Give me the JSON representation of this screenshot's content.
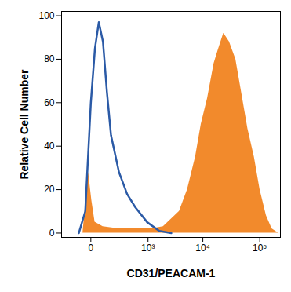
{
  "chart_data": {
    "type": "histogram",
    "xlabel": "CD31/PEACAM-1",
    "ylabel": "Relative Cell Number",
    "log": "x",
    "grid": false,
    "xlim": [
      -250,
      230000
    ],
    "ylim": [
      -2,
      102
    ],
    "xticks": [
      0,
      {
        "value": 1000,
        "label": "10³"
      },
      {
        "value": 10000,
        "label": "10⁴"
      },
      {
        "value": 100000,
        "label": "10⁵"
      }
    ],
    "yticks": [
      0,
      20,
      40,
      60,
      80,
      100
    ],
    "series": [
      {
        "type": "area",
        "color": "#f28a2c",
        "x": [
          -42,
          -11,
          4,
          20,
          70,
          234,
          1153,
          1945,
          3820,
          5330,
          7410,
          9330,
          12100,
          15740,
          18540,
          23300,
          29300,
          37950,
          47700,
          61700,
          80100,
          100700,
          130300,
          163700,
          212300
        ],
        "values": [
          0,
          28,
          15,
          5,
          3,
          2,
          2,
          3,
          10,
          20,
          35,
          50,
          62,
          78,
          84,
          92,
          88,
          80,
          65,
          48,
          35,
          20,
          8,
          2,
          0
        ]
      },
      {
        "type": "line",
        "color": "#2b5aa6",
        "x": [
          -69,
          -28,
          0,
          20,
          42,
          70,
          101,
          139,
          234,
          367,
          550,
          963,
          1635,
          2730
        ],
        "values": [
          0,
          10,
          60,
          85,
          97,
          88,
          65,
          45,
          28,
          18,
          12,
          5,
          1,
          0
        ]
      }
    ]
  }
}
